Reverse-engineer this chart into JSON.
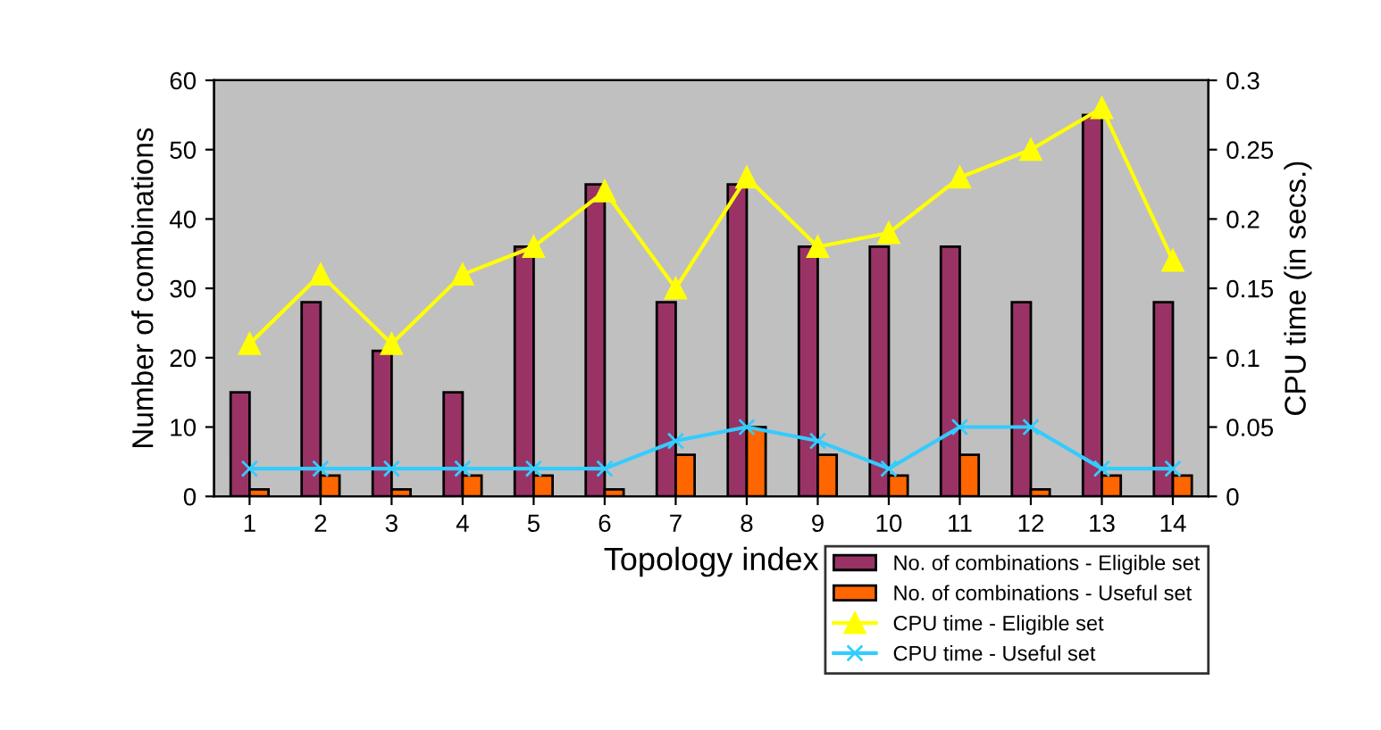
{
  "chart_data": {
    "type": "bar",
    "xlabel": "Topology index",
    "ylabel": "Number of combinations",
    "y2label": "CPU time (in secs.)",
    "categories": [
      "1",
      "2",
      "3",
      "4",
      "5",
      "6",
      "7",
      "8",
      "9",
      "10",
      "11",
      "12",
      "13",
      "14"
    ],
    "series": [
      {
        "name": "No. of combinations - Eligible set",
        "color": "#993366",
        "values": [
          15,
          28,
          21,
          15,
          36,
          45,
          28,
          45,
          36,
          36,
          36,
          28,
          55,
          28
        ]
      },
      {
        "name": "No. of combinations - Useful set",
        "color": "#ff6600",
        "values": [
          1,
          3,
          1,
          3,
          3,
          1,
          6,
          10,
          6,
          3,
          6,
          1,
          3,
          3
        ]
      },
      {
        "name": "CPU time - Eligible set",
        "type": "line",
        "axis": "y2",
        "color": "#ffff00",
        "marker": "triangle",
        "values": [
          0.11,
          0.16,
          0.11,
          0.16,
          0.18,
          0.22,
          0.15,
          0.23,
          0.18,
          0.19,
          0.23,
          0.25,
          0.28,
          0.17
        ]
      },
      {
        "name": "CPU time - Useful set",
        "type": "line",
        "axis": "y2",
        "color": "#33ccff",
        "marker": "cross",
        "values": [
          0.02,
          0.02,
          0.02,
          0.02,
          0.02,
          0.02,
          0.04,
          0.05,
          0.04,
          0.02,
          0.05,
          0.05,
          0.02,
          0.02
        ]
      }
    ],
    "ylim": [
      0,
      60
    ],
    "yticks": [
      0,
      10,
      20,
      30,
      40,
      50,
      60
    ],
    "y2lim": [
      0,
      0.3
    ],
    "y2ticks": [
      0,
      0.05,
      0.1,
      0.15,
      0.2,
      0.25,
      0.3
    ],
    "grid": false,
    "legend": "bottom right"
  }
}
